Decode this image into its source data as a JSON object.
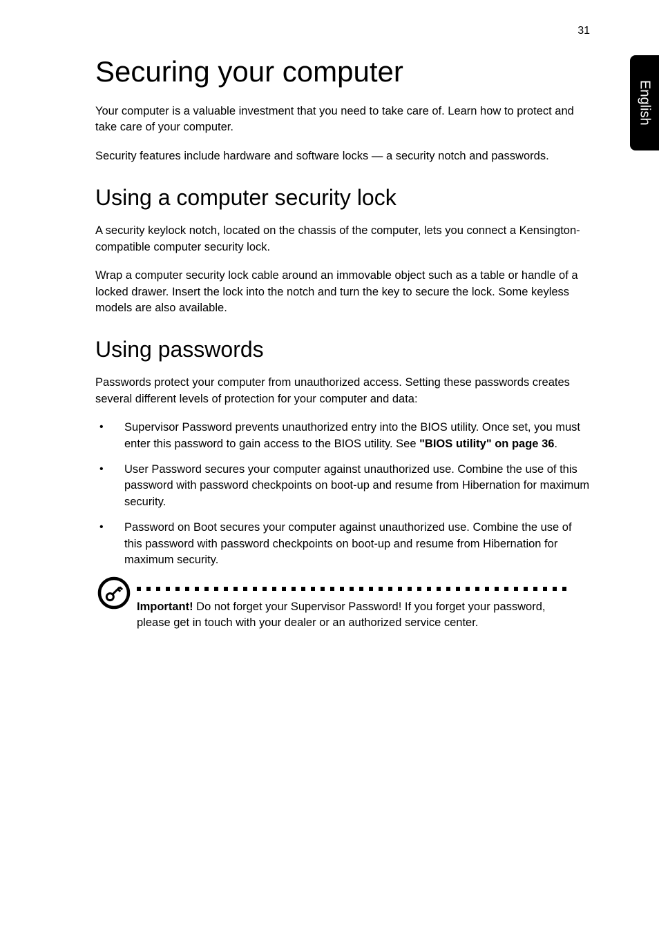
{
  "page_number": "31",
  "side_tab": "English",
  "h1": "Securing your computer",
  "intro_para1": "Your computer is a valuable investment that you need to take care of. Learn how to protect and take care of your computer.",
  "intro_para2": "Security features include hardware and software locks — a security notch and passwords.",
  "section1": {
    "heading": "Using a computer security lock",
    "para1": "A security keylock notch, located on the chassis of the computer, lets you connect a Kensington-compatible computer security lock.",
    "para2": "Wrap a computer security lock cable around an immovable object such as a table or handle of a locked drawer. Insert the lock into the notch and turn the key to secure the lock. Some keyless models are also available."
  },
  "section2": {
    "heading": "Using passwords",
    "para1": "Passwords protect your computer from unauthorized access. Setting these passwords creates several different levels of protection for your computer and data:",
    "bullets": [
      {
        "text_prefix": "Supervisor Password prevents unauthorized entry into the BIOS utility. Once set, you must enter this password to gain access to the BIOS utility. See ",
        "bold_link": "\"BIOS utility\" on page 36",
        "text_suffix": "."
      },
      {
        "text": "User Password secures your computer against unauthorized use. Combine the use of this password with password checkpoints on boot-up and resume from Hibernation for maximum security."
      },
      {
        "text": "Password on Boot secures your computer against unauthorized use. Combine the use of this password with password checkpoints on boot-up and resume from Hibernation for maximum security."
      }
    ],
    "note": {
      "bold_label": "Important!",
      "text": " Do not forget your Supervisor Password! If you forget your password, please get in touch with your dealer or an authorized service center."
    }
  },
  "styling": {
    "page_bg": "#ffffff",
    "text_color": "#000000",
    "tab_bg": "#000000",
    "tab_text": "#ffffff",
    "h1_fontsize": 42,
    "h2_fontsize": 32,
    "body_fontsize": 16.5,
    "font_weight_heading": 300,
    "font_weight_body": 300,
    "font_weight_bold": 600,
    "line_height": 1.42,
    "dot_size": 6,
    "dot_spacing": 8,
    "dot_count": 45,
    "icon_circle_stroke": "#000000",
    "icon_circle_stroke_width": 4
  }
}
